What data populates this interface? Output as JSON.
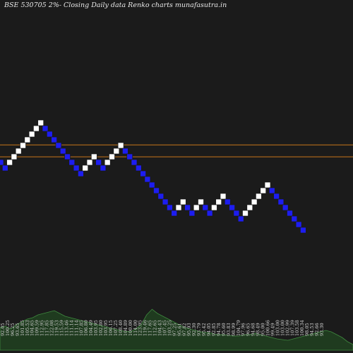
{
  "chart_data": {
    "type": "renko",
    "title": "BSE 530705 2%-  Closing Daily data  Renko  charts munafasutra.in",
    "colors": {
      "up_box": "#ffffff",
      "down_box": "#1d1df0",
      "box_edge": "#1a1a1a",
      "reference_line": "#c8761a",
      "volume_fill": "#1f3b1f",
      "volume_stroke": "#3f8a3f"
    },
    "reference_lines": [
      122.08,
      117.22
    ],
    "bricks": [
      {
        "dir": "down",
        "level": 116.1
      },
      {
        "dir": "down",
        "level": 113.8
      },
      {
        "dir": "up",
        "level": 116.1
      },
      {
        "dir": "up",
        "level": 118.4
      },
      {
        "dir": "up",
        "level": 120.7
      },
      {
        "dir": "up",
        "level": 123.0
      },
      {
        "dir": "up",
        "level": 125.3
      },
      {
        "dir": "up",
        "level": 127.6
      },
      {
        "dir": "up",
        "level": 129.9
      },
      {
        "dir": "up",
        "level": 132.2
      },
      {
        "dir": "down",
        "level": 129.9
      },
      {
        "dir": "down",
        "level": 127.6
      },
      {
        "dir": "down",
        "level": 125.3
      },
      {
        "dir": "down",
        "level": 123.0
      },
      {
        "dir": "down",
        "level": 120.7
      },
      {
        "dir": "down",
        "level": 118.4
      },
      {
        "dir": "down",
        "level": 116.1
      },
      {
        "dir": "down",
        "level": 113.8
      },
      {
        "dir": "down",
        "level": 111.5
      },
      {
        "dir": "up",
        "level": 113.8
      },
      {
        "dir": "up",
        "level": 116.1
      },
      {
        "dir": "up",
        "level": 118.4
      },
      {
        "dir": "down",
        "level": 116.1
      },
      {
        "dir": "down",
        "level": 113.8
      },
      {
        "dir": "up",
        "level": 116.1
      },
      {
        "dir": "up",
        "level": 118.4
      },
      {
        "dir": "up",
        "level": 120.7
      },
      {
        "dir": "up",
        "level": 123.0
      },
      {
        "dir": "down",
        "level": 120.7
      },
      {
        "dir": "down",
        "level": 118.4
      },
      {
        "dir": "down",
        "level": 116.1
      },
      {
        "dir": "down",
        "level": 113.8
      },
      {
        "dir": "down",
        "level": 111.5
      },
      {
        "dir": "down",
        "level": 109.2
      },
      {
        "dir": "down",
        "level": 106.9
      },
      {
        "dir": "down",
        "level": 104.6
      },
      {
        "dir": "down",
        "level": 102.3
      },
      {
        "dir": "down",
        "level": 100.0
      },
      {
        "dir": "down",
        "level": 97.7
      },
      {
        "dir": "down",
        "level": 95.4
      },
      {
        "dir": "up",
        "level": 97.7
      },
      {
        "dir": "up",
        "level": 100.0
      },
      {
        "dir": "down",
        "level": 97.7
      },
      {
        "dir": "down",
        "level": 95.4
      },
      {
        "dir": "up",
        "level": 97.7
      },
      {
        "dir": "up",
        "level": 100.0
      },
      {
        "dir": "down",
        "level": 97.7
      },
      {
        "dir": "down",
        "level": 95.4
      },
      {
        "dir": "up",
        "level": 97.7
      },
      {
        "dir": "up",
        "level": 100.0
      },
      {
        "dir": "up",
        "level": 102.3
      },
      {
        "dir": "down",
        "level": 100.0
      },
      {
        "dir": "down",
        "level": 97.7
      },
      {
        "dir": "down",
        "level": 95.4
      },
      {
        "dir": "down",
        "level": 93.1
      },
      {
        "dir": "up",
        "level": 95.4
      },
      {
        "dir": "up",
        "level": 97.7
      },
      {
        "dir": "up",
        "level": 100.0
      },
      {
        "dir": "up",
        "level": 102.3
      },
      {
        "dir": "up",
        "level": 104.6
      },
      {
        "dir": "up",
        "level": 106.9
      },
      {
        "dir": "down",
        "level": 104.6
      },
      {
        "dir": "down",
        "level": 102.3
      },
      {
        "dir": "down",
        "level": 100.0
      },
      {
        "dir": "down",
        "level": 97.7
      },
      {
        "dir": "down",
        "level": 95.4
      },
      {
        "dir": "down",
        "level": 93.1
      },
      {
        "dir": "down",
        "level": 90.8
      },
      {
        "dir": "down",
        "level": 88.5
      }
    ],
    "volume_labels": [
      "92.05",
      "100.25",
      "96.25",
      "93.65",
      "101.85",
      "105.53",
      "104.65",
      "109.59",
      "112.95",
      "117.85",
      "122.08",
      "119.53",
      "115.59",
      "113.46",
      "111.14",
      "111.14",
      "107.85",
      "106.80",
      "104.49",
      "103.95",
      "102.80",
      "103.95",
      "106.15",
      "107.25",
      "108.40",
      "104.89",
      "100.00",
      "114.00",
      "123.95",
      "119.46",
      "117.65",
      "112.65",
      "104.43",
      "107.45",
      "103.25",
      "97.25",
      "95.61",
      "97.82",
      "95.93",
      "92.30",
      "93.79",
      "95.42",
      "94.05",
      "92.85",
      "94.78",
      "95.60",
      "93.83",
      "98.99",
      "104.79",
      "97.96",
      "96.65",
      "94.68",
      "98.49",
      "95.00",
      "100.66",
      "99.49",
      "103.00",
      "103.00",
      "102.99",
      "107.39",
      "103.58",
      "100.34",
      "98.05",
      "94.53",
      "92.66",
      "93.30"
    ],
    "volumes": [
      32,
      34,
      30,
      36,
      40,
      44,
      46,
      50,
      52,
      54,
      56,
      52,
      48,
      46,
      44,
      42,
      40,
      38,
      36,
      34,
      32,
      30,
      28,
      27,
      26,
      30,
      36,
      50,
      58,
      52,
      48,
      44,
      40,
      36,
      32,
      30,
      28,
      26,
      25,
      24,
      22,
      22,
      21,
      20,
      20,
      22,
      22,
      24,
      22,
      20,
      18,
      16,
      15,
      14,
      16,
      18,
      20,
      22,
      24,
      26,
      28,
      26,
      22,
      18,
      12,
      8
    ]
  }
}
